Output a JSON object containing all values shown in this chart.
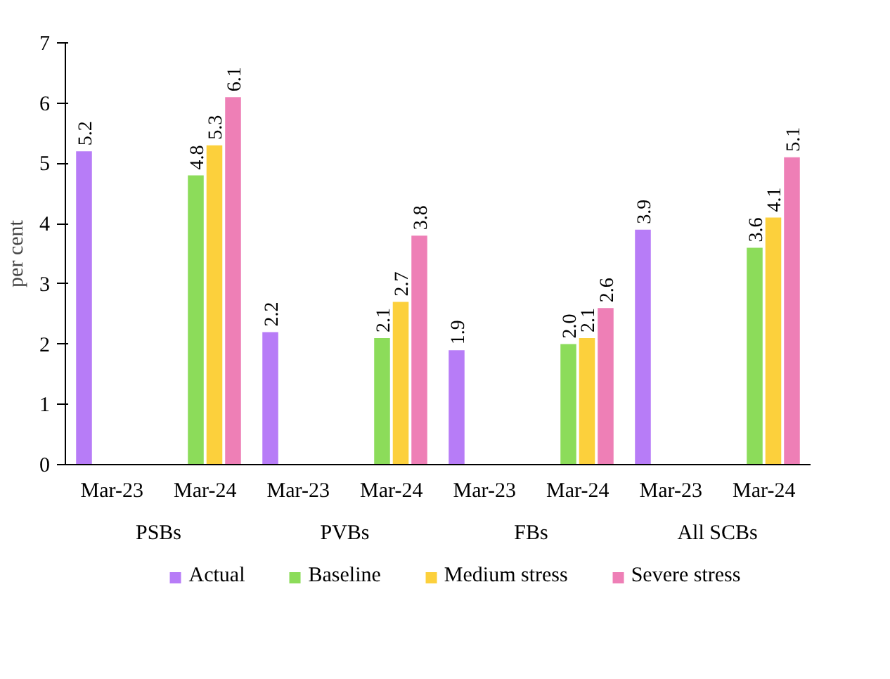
{
  "chart_data": {
    "type": "bar",
    "ylabel": "per cent",
    "categories": [
      "Mar-23",
      "Mar-24",
      "Mar-23",
      "Mar-24",
      "Mar-23",
      "Mar-24",
      "Mar-23",
      "Mar-24"
    ],
    "annotations": [
      "PSBs",
      "PVBs",
      "FBs",
      "All SCBs"
    ],
    "series": [
      {
        "name": "Actual",
        "color": "#b77cf7",
        "values": [
          5.2,
          null,
          2.2,
          null,
          1.9,
          null,
          3.9,
          null
        ],
        "value_labels": [
          "5.2",
          null,
          "2.2",
          null,
          "1.9",
          null,
          "3.9",
          null
        ]
      },
      {
        "name": "Baseline",
        "color": "#8cdc5a",
        "values": [
          null,
          4.8,
          null,
          2.1,
          null,
          2.0,
          null,
          3.6
        ],
        "value_labels": [
          null,
          "4.8",
          null,
          "2.1",
          null,
          "2.0",
          null,
          "3.6"
        ]
      },
      {
        "name": "Medium stress",
        "color": "#fcd03c",
        "values": [
          null,
          5.3,
          null,
          2.7,
          null,
          2.1,
          null,
          4.1
        ],
        "value_labels": [
          null,
          "5.3",
          null,
          "2.7",
          null,
          "2.1",
          null,
          "4.1"
        ]
      },
      {
        "name": "Severe stress",
        "color": "#ee7fb6",
        "values": [
          null,
          6.1,
          null,
          3.8,
          null,
          2.6,
          null,
          5.1
        ],
        "value_labels": [
          null,
          "6.1",
          null,
          "3.8",
          null,
          "2.6",
          null,
          "5.1"
        ]
      }
    ],
    "ylim": [
      0,
      7
    ],
    "yticks": [
      0,
      1,
      2,
      3,
      4,
      5,
      6,
      7
    ],
    "legend": "bottom"
  }
}
